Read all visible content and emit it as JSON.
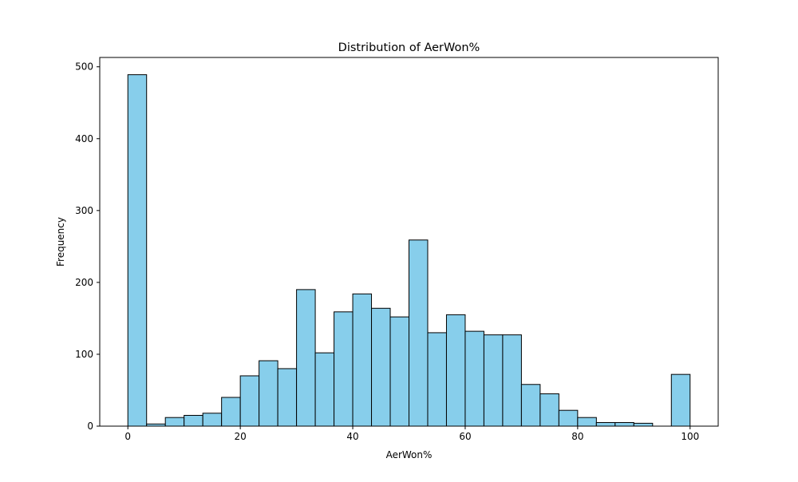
{
  "chart_data": {
    "type": "bar",
    "title": "Distribution of AerWon%",
    "xlabel": "AerWon%",
    "ylabel": "Frequency",
    "xlim": [
      -5,
      105
    ],
    "ylim": [
      0,
      513
    ],
    "xticks": [
      0,
      20,
      40,
      60,
      80,
      100
    ],
    "yticks": [
      0,
      100,
      200,
      300,
      400,
      500
    ],
    "bin_edges": [
      0,
      3.333,
      6.667,
      10,
      13.333,
      16.667,
      20,
      23.333,
      26.667,
      30,
      33.333,
      36.667,
      40,
      43.333,
      46.667,
      50,
      53.333,
      56.667,
      60,
      63.333,
      66.667,
      70,
      73.333,
      76.667,
      80,
      83.333,
      86.667,
      90,
      93.333,
      96.667,
      100
    ],
    "values": [
      489,
      3,
      12,
      15,
      18,
      40,
      70,
      91,
      80,
      190,
      102,
      159,
      184,
      164,
      152,
      259,
      130,
      155,
      132,
      127,
      127,
      58,
      45,
      22,
      12,
      5,
      5,
      4,
      0,
      72
    ],
    "bar_color": "#87ceeb",
    "edge_color": "#000000",
    "grid": false,
    "legend": "none"
  }
}
